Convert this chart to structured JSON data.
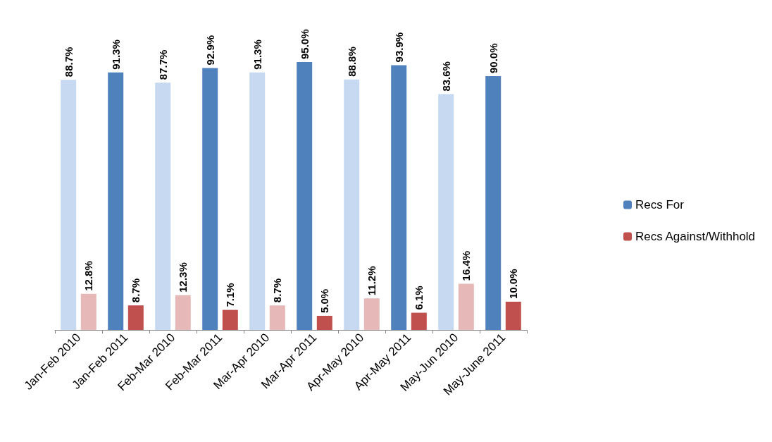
{
  "chart_data": {
    "type": "bar",
    "categories": [
      "Jan-Feb 2010",
      "Jan-Feb 2011",
      "Feb-Mar 2010",
      "Feb-Mar 2011",
      "Mar-Apr 2010",
      "Mar-Apr 2011",
      "Apr-May 2010",
      "Apr-May 2011",
      "May-Jun 2010",
      "May-June 2011"
    ],
    "series": [
      {
        "name": "Recs For",
        "color": "#4f81bd",
        "colors": [
          "#c6d9f1",
          "#4f81bd",
          "#c6d9f1",
          "#4f81bd",
          "#c6d9f1",
          "#4f81bd",
          "#c6d9f1",
          "#4f81bd",
          "#c6d9f1",
          "#4f81bd"
        ],
        "values": [
          88.7,
          91.3,
          87.7,
          92.9,
          91.3,
          95.0,
          88.8,
          93.9,
          83.6,
          90.0
        ],
        "value_labels": [
          "88.7%",
          "91.3%",
          "87.7%",
          "92.9%",
          "91.3%",
          "95.0%",
          "88.8%",
          "93.9%",
          "83.6%",
          "90.0%"
        ]
      },
      {
        "name": "Recs Against/Withhold",
        "color": "#c0504d",
        "colors": [
          "#e6b9b8",
          "#c0504d",
          "#e6b9b8",
          "#c0504d",
          "#e6b9b8",
          "#c0504d",
          "#e6b9b8",
          "#c0504d",
          "#e6b9b8",
          "#c0504d"
        ],
        "values": [
          12.8,
          8.7,
          12.3,
          7.1,
          8.7,
          5.0,
          11.2,
          6.1,
          16.4,
          10.0
        ],
        "value_labels": [
          "12.8%",
          "8.7%",
          "12.3%",
          "7.1%",
          "8.7%",
          "5.0%",
          "11.2%",
          "6.1%",
          "16.4%",
          "10.0%"
        ]
      }
    ],
    "legend": "right",
    "grid": false
  }
}
